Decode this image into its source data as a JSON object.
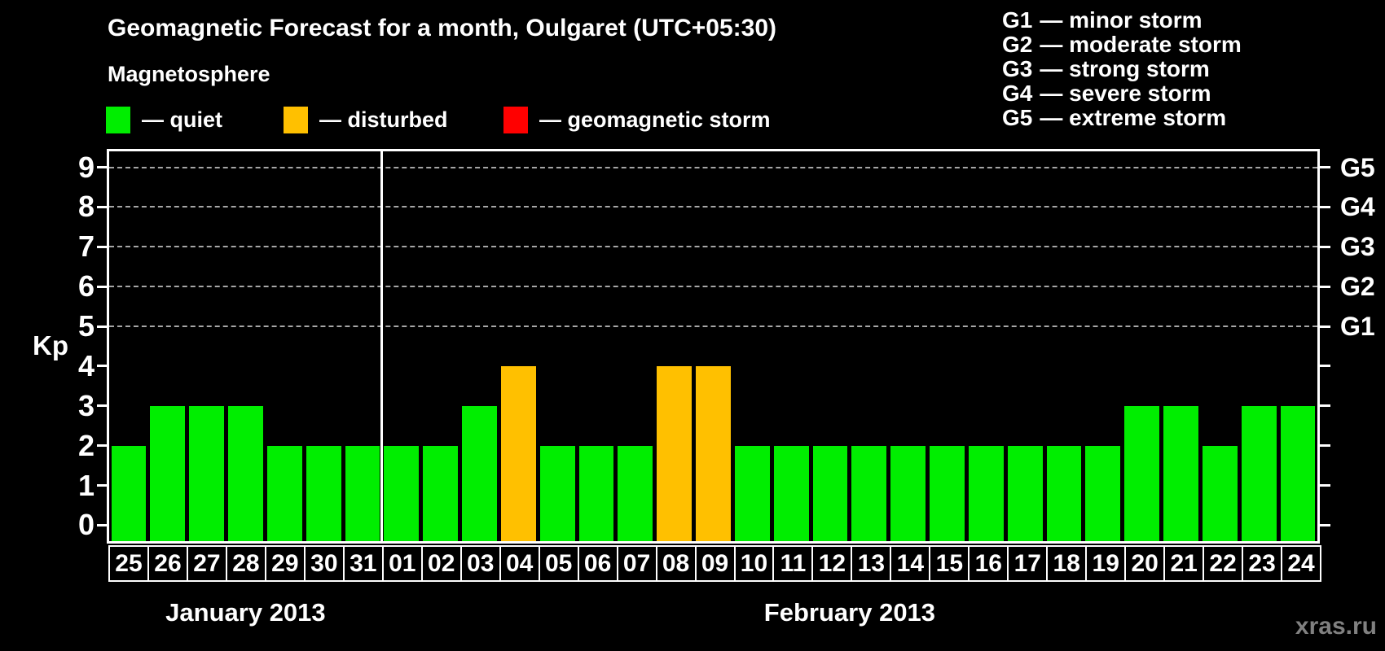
{
  "watermark": "xras.ru",
  "colors": {
    "background": "#000000",
    "axis": "#ffffff",
    "grid": "#a6a6a6",
    "watermark": "#808080"
  },
  "chart_data": {
    "type": "bar",
    "title": "Geomagnetic Forecast for a month, Oulgaret (UTC+05:30)",
    "xlabel": "",
    "ylabel": "Kp",
    "ylim": [
      0,
      9
    ],
    "yticks": [
      0,
      1,
      2,
      3,
      4,
      5,
      6,
      7,
      8,
      9
    ],
    "gridlines_kp": [
      5,
      6,
      7,
      8,
      9
    ],
    "grid": "dashed horizontal at storm levels only",
    "legend_position": "top-left",
    "status_colors": {
      "quiet": "#00ee00",
      "disturbed": "#ffc000",
      "storm": "#ff0000"
    },
    "legend": {
      "title": "Magnetosphere",
      "items": [
        {
          "status": "quiet",
          "label": "— quiet",
          "color": "#00ee00"
        },
        {
          "status": "disturbed",
          "label": "— disturbed",
          "color": "#ffc000"
        },
        {
          "status": "storm",
          "label": "— geomagnetic storm",
          "color": "#ff0000"
        }
      ]
    },
    "g_scale": [
      {
        "code": "G1",
        "text": "— minor storm"
      },
      {
        "code": "G2",
        "text": "— moderate storm"
      },
      {
        "code": "G3",
        "text": "— strong storm"
      },
      {
        "code": "G4",
        "text": "— severe storm"
      },
      {
        "code": "G5",
        "text": "— extreme storm"
      }
    ],
    "right_ticks": [
      {
        "kp": 5,
        "label": "G1"
      },
      {
        "kp": 6,
        "label": "G2"
      },
      {
        "kp": 7,
        "label": "G3"
      },
      {
        "kp": 8,
        "label": "G4"
      },
      {
        "kp": 9,
        "label": "G5"
      }
    ],
    "months": [
      {
        "label": "January 2013",
        "days": [
          "25",
          "26",
          "27",
          "28",
          "29",
          "30",
          "31"
        ],
        "kp": [
          2,
          3,
          3,
          3,
          2,
          2,
          2
        ],
        "status": [
          "quiet",
          "quiet",
          "quiet",
          "quiet",
          "quiet",
          "quiet",
          "quiet"
        ]
      },
      {
        "label": "February 2013",
        "days": [
          "01",
          "02",
          "03",
          "04",
          "05",
          "06",
          "07",
          "08",
          "09",
          "10",
          "11",
          "12",
          "13",
          "14",
          "15",
          "16",
          "17",
          "18",
          "19",
          "20",
          "21",
          "22",
          "23",
          "24"
        ],
        "kp": [
          2,
          2,
          3,
          4,
          2,
          2,
          2,
          4,
          4,
          2,
          2,
          2,
          2,
          2,
          2,
          2,
          2,
          2,
          2,
          3,
          3,
          2,
          3,
          3
        ],
        "status": [
          "quiet",
          "quiet",
          "quiet",
          "disturbed",
          "quiet",
          "quiet",
          "quiet",
          "disturbed",
          "disturbed",
          "quiet",
          "quiet",
          "quiet",
          "quiet",
          "quiet",
          "quiet",
          "quiet",
          "quiet",
          "quiet",
          "quiet",
          "quiet",
          "quiet",
          "quiet",
          "quiet",
          "quiet"
        ]
      }
    ]
  }
}
